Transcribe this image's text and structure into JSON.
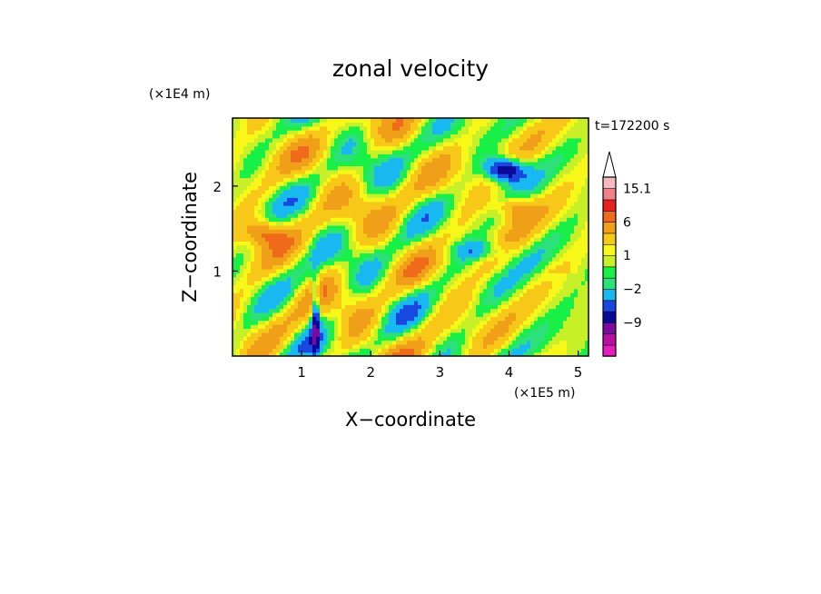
{
  "chart_data": {
    "type": "heatmap",
    "title": "zonal velocity",
    "xlabel": "X−coordinate",
    "ylabel": "Z−coordinate",
    "x_unit": "(×1E5 m)",
    "y_unit": "(×1E4 m)",
    "time_label": "t=172200 s",
    "xlim": [
      0,
      5.15
    ],
    "ylim": [
      0,
      2.8
    ],
    "x_ticks": [
      1,
      2,
      3,
      4,
      5
    ],
    "y_ticks": [
      1,
      2
    ],
    "x_tick_labels": [
      "1",
      "2",
      "3",
      "4",
      "5"
    ],
    "y_tick_labels": [
      "1",
      "2"
    ],
    "colorbar": {
      "levels": [
        -15,
        -12,
        -9,
        -6,
        -4,
        -2,
        -1,
        0,
        1,
        2,
        4,
        6,
        9,
        12,
        15.1
      ],
      "labeled_values": [
        15.1,
        6,
        1,
        -2,
        -9
      ],
      "labels": [
        "15.1",
        "6",
        "1",
        "−2",
        "−9"
      ],
      "colors": [
        "#e81cc0",
        "#b4129e",
        "#7c0aa0",
        "#0a0a9a",
        "#1848e0",
        "#18b8f0",
        "#2ce07a",
        "#18f048",
        "#c8f028",
        "#f8f818",
        "#f8c818",
        "#f0a018",
        "#f06a1c",
        "#e82020",
        "#f0808a",
        "#f8b8c0"
      ]
    },
    "features": [
      {
        "name": "jet core",
        "x": 3.95,
        "z": 2.2,
        "value": -12
      },
      {
        "name": "negative band",
        "x": 3.6,
        "z": 1.25,
        "value": -4
      },
      {
        "name": "narrow feature",
        "x": 1.2,
        "z": 0.45,
        "value": -9
      },
      {
        "name": "positive blob",
        "x": 0.45,
        "z": 1.45,
        "value": 6
      },
      {
        "name": "positive blob",
        "x": 4.1,
        "z": 1.75,
        "value": 6
      }
    ]
  }
}
